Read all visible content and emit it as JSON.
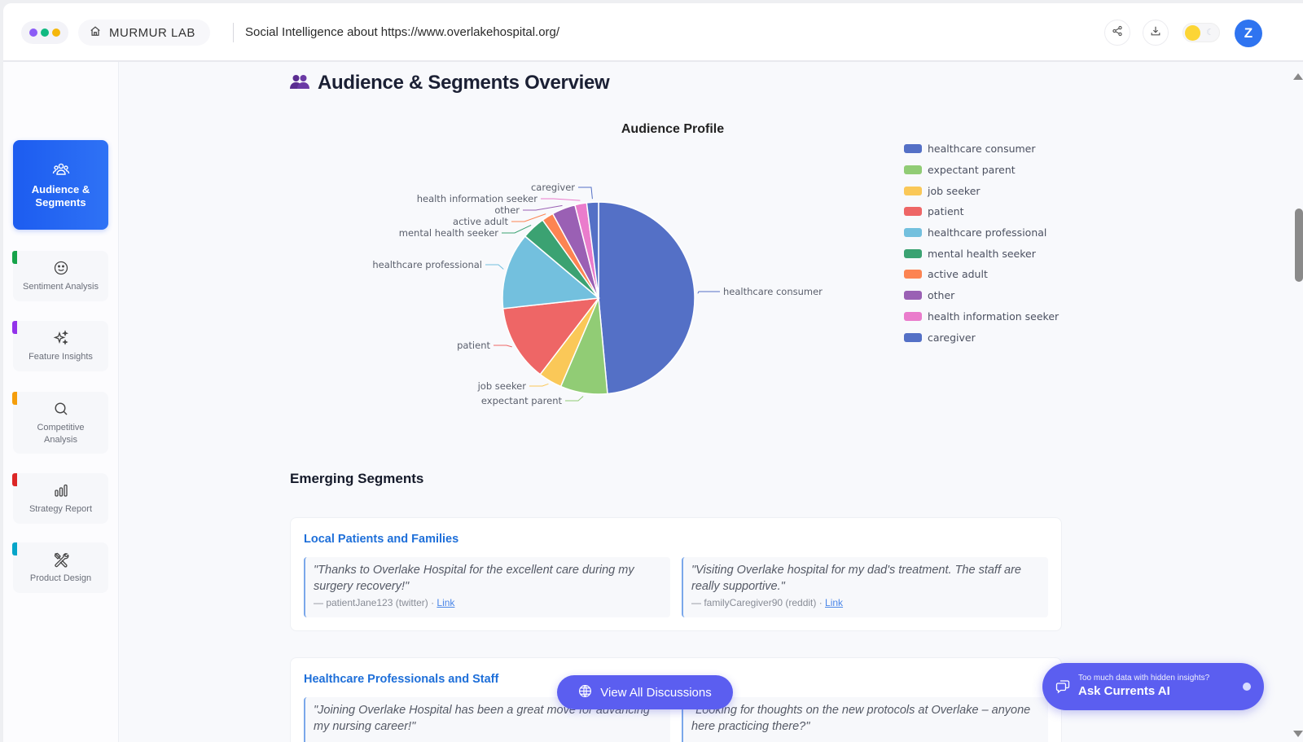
{
  "window": {
    "dots": [
      "#8b5cf6",
      "#10b981",
      "#f5b70b"
    ],
    "brand": "MURMUR LAB",
    "page_title": "Social Intelligence about https://www.overlakehospital.org/",
    "avatar_letter": "Z",
    "icons": {
      "home": "home-icon",
      "share": "share-icon",
      "download": "download-icon",
      "theme": "theme-toggle",
      "moon": "moon-icon"
    }
  },
  "sidebar": {
    "items": [
      {
        "label": "Audience & Segments",
        "icon": "users-icon",
        "active": true,
        "accent": "#2563eb"
      },
      {
        "label": "Sentiment Analysis",
        "icon": "smile-icon",
        "active": false,
        "accent": "#16a34a"
      },
      {
        "label": "Feature Insights",
        "icon": "sparkles-icon",
        "active": false,
        "accent": "#9333ea"
      },
      {
        "label": "Competitive Analysis",
        "icon": "search-icon",
        "active": false,
        "accent": "#f59e0b"
      },
      {
        "label": "Strategy Report",
        "icon": "bar-chart-icon",
        "active": false,
        "accent": "#dc2626"
      },
      {
        "label": "Product Design",
        "icon": "tools-icon",
        "active": false,
        "accent": "#06a5c9"
      }
    ]
  },
  "main": {
    "heading": "Audience & Segments Overview",
    "emerging_title": "Emerging Segments",
    "segments": [
      {
        "title": "Local Patients and Families",
        "quotes": [
          {
            "text": "\"Thanks to Overlake Hospital for the excellent care during my surgery recovery!\"",
            "author": "— patientJane123 (twitter) · ",
            "link": "Link"
          },
          {
            "text": "\"Visiting Overlake hospital for my dad's treatment. The staff are really supportive.\"",
            "author": "— familyCaregiver90 (reddit) · ",
            "link": "Link"
          }
        ]
      },
      {
        "title": "Healthcare Professionals and Staff",
        "quotes": [
          {
            "text": "\"Joining Overlake Hospital has been a great move for advancing my nursing career!\"",
            "author": "",
            "link": ""
          },
          {
            "text": "\"Looking for thoughts on the new protocols at Overlake – anyone here practicing there?\"",
            "author": "",
            "link": ""
          }
        ]
      }
    ],
    "view_all": "View All Discussions",
    "ask_ai_small": "Too much data with hidden insights?",
    "ask_ai_big": "Ask Currents AI"
  },
  "chart_data": {
    "type": "pie",
    "title": "Audience Profile",
    "legend_position": "right",
    "categories": [
      "healthcare consumer",
      "expectant parent",
      "job seeker",
      "patient",
      "healthcare professional",
      "mental health seeker",
      "active adult",
      "other",
      "health information seeker",
      "caregiver"
    ],
    "values": [
      49,
      8,
      4,
      13,
      13,
      4,
      2,
      4,
      2,
      2
    ],
    "colors": [
      "#5470c6",
      "#91cc75",
      "#fac858",
      "#ee6666",
      "#73c0de",
      "#3ba272",
      "#fc8452",
      "#9a60b4",
      "#ea7ccc",
      "#5470c6"
    ]
  }
}
